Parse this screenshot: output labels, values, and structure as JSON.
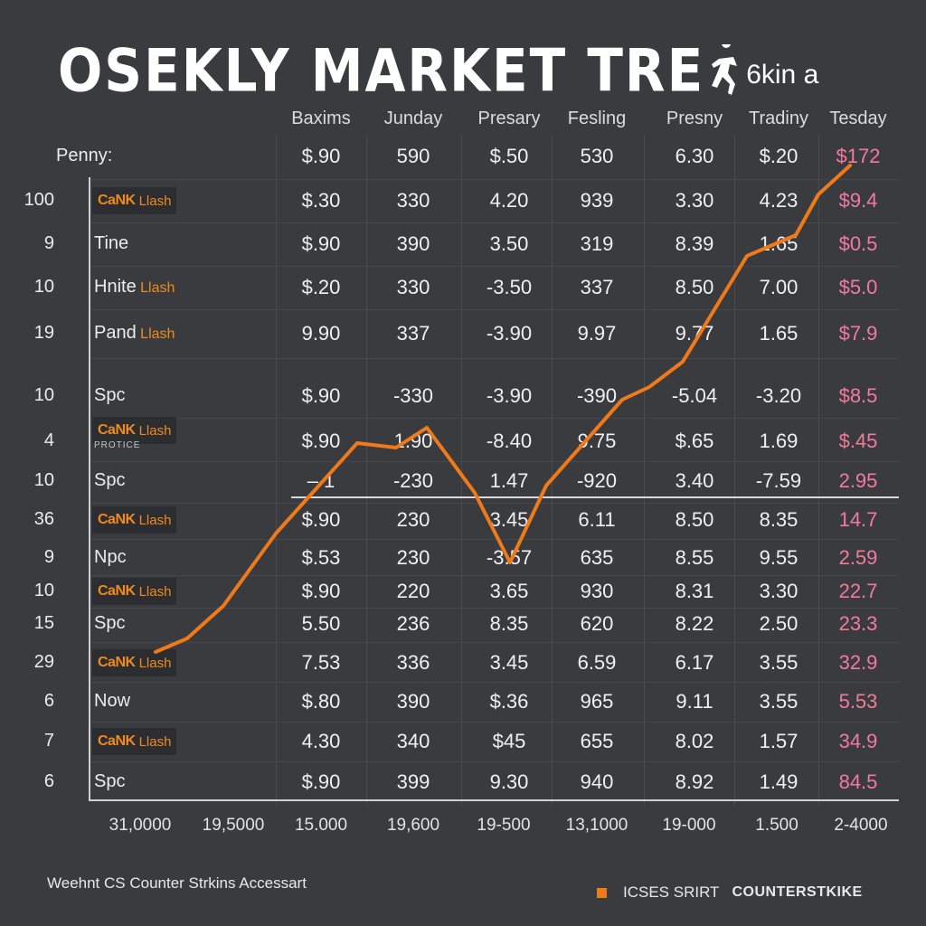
{
  "header": {
    "title": "OSEKLY MARKET TRE",
    "title_suffix": "6kin a",
    "icon": "runner-silhouette-icon"
  },
  "corner_label": "Penny:",
  "colors": {
    "accent": "#f07a1a",
    "pink_values": "#f47a9c",
    "background": "#3a3b3f"
  },
  "chart_data": {
    "type": "line",
    "columns": [
      "Baxims",
      "Junday",
      "Presary",
      "Fesling",
      "Presny",
      "Tradiny",
      "Tesday"
    ],
    "x_ticks": [
      "31,0000",
      "19,5000",
      "15.000",
      "19,600",
      "19-500",
      "13,1000",
      "19-000",
      "1.500",
      "2-4000"
    ],
    "rows": [
      {
        "num": "100",
        "label": "CaNK Llash",
        "badge": true,
        "values": [
          "$.30",
          "330",
          "4.20",
          "939",
          "3.30",
          "4.23",
          "$9.4"
        ]
      },
      {
        "num": "9",
        "label": "Tine",
        "values": [
          "$.90",
          "390",
          "3.50",
          "319",
          "8.39",
          "1.65",
          "$0.5"
        ]
      },
      {
        "num": "10",
        "label": "Hnite",
        "label_tag": "Llash",
        "values": [
          "$.20",
          "330",
          "-3.50",
          "337",
          "8.50",
          "7.00",
          "$5.0"
        ]
      },
      {
        "num": "19",
        "label": "Pand",
        "label_tag": "Llash",
        "values": [
          "9.90",
          "337",
          "-3.90",
          "9.97",
          "9.77",
          "1.65",
          "$7.9"
        ]
      },
      {
        "num": "10",
        "label": "Spc",
        "values": [
          "$.90",
          "-330",
          "-3.90",
          "-390",
          "-5.04",
          "-3.20",
          "$8.5"
        ]
      },
      {
        "num": "4",
        "label": "CaNK Llash",
        "badge": true,
        "sub": "PROTICE",
        "values": [
          "$.90",
          "1.90",
          "-8.40",
          "9.75",
          "$.65",
          "1.69",
          "$.45"
        ]
      },
      {
        "num": "10",
        "label": "Spc",
        "values": [
          "– 1",
          "-230",
          "1.47",
          "-920",
          "3.40",
          "-7.59",
          "2.95"
        ]
      },
      {
        "num": "36",
        "label": "CaNK Llash",
        "badge": true,
        "values": [
          "$.90",
          "230",
          "3.45",
          "6.11",
          "8.50",
          "8.35",
          "14.7"
        ]
      },
      {
        "num": "9",
        "label": "Npc",
        "values": [
          "$.53",
          "230",
          "-3.57",
          "635",
          "8.55",
          "9.55",
          "2.59"
        ]
      },
      {
        "num": "10",
        "label": "CaNK Llash",
        "badge": true,
        "values": [
          "$.90",
          "220",
          "3.65",
          "930",
          "8.31",
          "3.30",
          "22.7"
        ]
      },
      {
        "num": "15",
        "label": "Spc",
        "values": [
          "5.50",
          "236",
          "8.35",
          "620",
          "8.22",
          "2.50",
          "23.3"
        ]
      },
      {
        "num": "29",
        "label": "CaNK Llash",
        "badge": true,
        "values": [
          "7.53",
          "336",
          "3.45",
          "6.59",
          "6.17",
          "3.55",
          "32.9"
        ]
      },
      {
        "num": "6",
        "label": "Now",
        "values": [
          "$.80",
          "390",
          "$.36",
          "965",
          "9.11",
          "3.55",
          "5.53"
        ]
      },
      {
        "num": "7",
        "label": "CaNK Llash",
        "badge": true,
        "values": [
          "4.30",
          "340",
          "$45",
          "655",
          "8.02",
          "1.57",
          "34.9"
        ]
      },
      {
        "num": "6",
        "label": "Spc",
        "values": [
          "$.90",
          "399",
          "9.30",
          "940",
          "8.92",
          "1.49",
          "84.5"
        ]
      }
    ],
    "header_row_values": [
      "$.90",
      "590",
      "$.50",
      "530",
      "6.30",
      "$.20",
      "$172"
    ]
  },
  "footer": {
    "left": "Weehnt CS Counter Strkins Accessart",
    "brand1": "ICSES SRIRT",
    "brand2": "COUNTERSTKIKE"
  }
}
